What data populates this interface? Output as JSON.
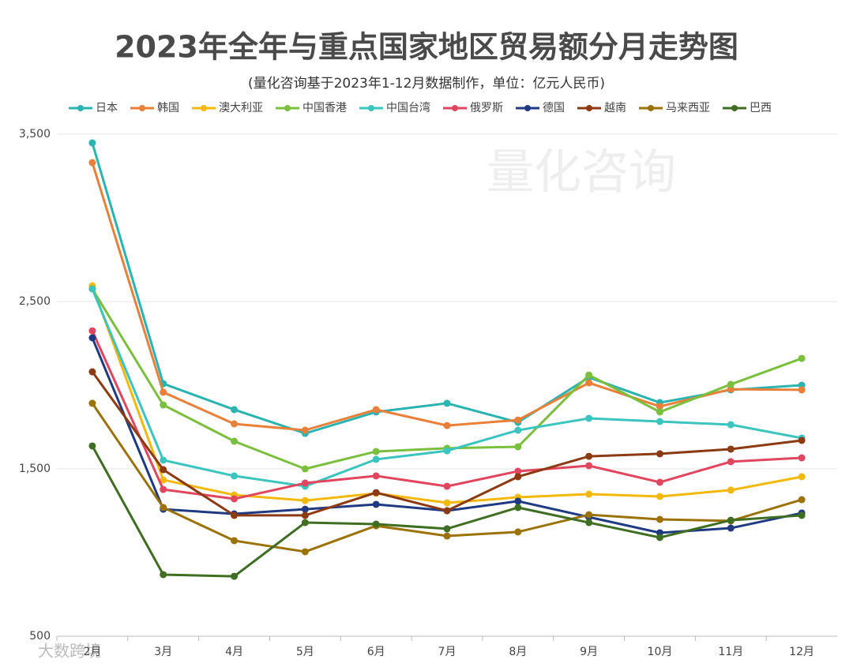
{
  "chart_data": {
    "type": "line",
    "title": "2023年全年与重点国家地区贸易额分月走势图",
    "subtitle": "(量化咨询基于2023年1-12月数据制作，单位：亿元人民币)",
    "annotations": [
      "量化咨询",
      "大数跨境"
    ],
    "categories": [
      "2月",
      "3月",
      "4月",
      "5月",
      "6月",
      "7月",
      "8月",
      "9月",
      "10月",
      "11月",
      "12月"
    ],
    "ylim": [
      500,
      3500
    ],
    "yticks": [
      500,
      {
        "value": 1500,
        "label": "1,500"
      },
      {
        "value": 2500,
        "label": "2,500"
      },
      {
        "value": 3500,
        "label": "3,500"
      }
    ],
    "grid": true,
    "legend": "top",
    "series": [
      {
        "name": "日本",
        "color": "#2bb3b1",
        "values": [
          3448,
          2009,
          1854,
          1712,
          1840,
          1892,
          1778,
          2047,
          1896,
          1972,
          2000
        ]
      },
      {
        "name": "韩国",
        "color": "#e8803a",
        "values": [
          3330,
          1958,
          1769,
          1731,
          1854,
          1759,
          1792,
          2014,
          1873,
          1976,
          1972
        ]
      },
      {
        "name": "澳大利亚",
        "color": "#f2b90c",
        "values": [
          2594,
          1434,
          1344,
          1311,
          1354,
          1297,
          1330,
          1349,
          1335,
          1373,
          1453
        ]
      },
      {
        "name": "中国香港",
        "color": "#7bbf3f",
        "values": [
          2575,
          1882,
          1665,
          1500,
          1604,
          1623,
          1632,
          2061,
          1840,
          2005,
          2160
        ]
      },
      {
        "name": "中国台湾",
        "color": "#3cc4bf",
        "values": [
          2575,
          1552,
          1458,
          1396,
          1557,
          1608,
          1731,
          1802,
          1783,
          1764,
          1684
        ]
      },
      {
        "name": "俄罗斯",
        "color": "#e0475f",
        "values": [
          2325,
          1377,
          1321,
          1415,
          1458,
          1396,
          1486,
          1519,
          1420,
          1543,
          1566
        ]
      },
      {
        "name": "德国",
        "color": "#1f3a80",
        "values": [
          2283,
          1259,
          1231,
          1259,
          1288,
          1250,
          1307,
          1212,
          1118,
          1146,
          1236
        ]
      },
      {
        "name": "越南",
        "color": "#8b3a12",
        "values": [
          2080,
          1495,
          1222,
          1222,
          1358,
          1250,
          1453,
          1575,
          1590,
          1618,
          1670
        ]
      },
      {
        "name": "马来西亚",
        "color": "#9a7208",
        "values": [
          1892,
          1269,
          1071,
          1005,
          1160,
          1099,
          1123,
          1226,
          1198,
          1189,
          1316
        ]
      },
      {
        "name": "巴西",
        "color": "#3f6e22",
        "values": [
          1637,
          868,
          858,
          1179,
          1170,
          1142,
          1269,
          1179,
          1090,
          1193,
          1222
        ]
      }
    ]
  }
}
